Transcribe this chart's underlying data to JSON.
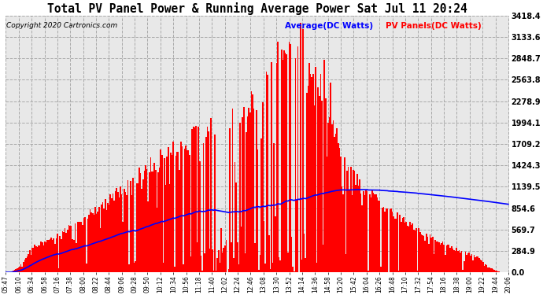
{
  "title": "Total PV Panel Power & Running Average Power Sat Jul 11 20:24",
  "copyright": "Copyright 2020 Cartronics.com",
  "ylabel_right_ticks": [
    0.0,
    284.9,
    569.7,
    854.6,
    1139.5,
    1424.3,
    1709.2,
    1994.1,
    2278.9,
    2563.8,
    2848.7,
    3133.6,
    3418.4
  ],
  "ylim": [
    0,
    3418.4
  ],
  "background_color": "#ffffff",
  "plot_background": "#e8e8e8",
  "grid_color": "#aaaaaa",
  "bar_color": "#ff0000",
  "avg_line_color": "#0000ff",
  "title_color": "#000000",
  "copyright_color": "#000000",
  "avg_label_color": "#0000ff",
  "pv_label_color": "#ff0000",
  "x_labels": [
    "05:47",
    "06:10",
    "06:34",
    "06:58",
    "07:16",
    "07:38",
    "08:00",
    "08:22",
    "08:44",
    "09:06",
    "09:28",
    "09:50",
    "10:12",
    "10:34",
    "10:56",
    "11:18",
    "11:40",
    "12:02",
    "12:24",
    "12:46",
    "13:08",
    "13:30",
    "13:52",
    "14:14",
    "14:36",
    "14:58",
    "15:20",
    "15:42",
    "16:04",
    "16:26",
    "16:48",
    "17:10",
    "17:32",
    "17:54",
    "18:16",
    "18:38",
    "19:00",
    "19:22",
    "19:44",
    "20:06"
  ],
  "num_points": 400
}
